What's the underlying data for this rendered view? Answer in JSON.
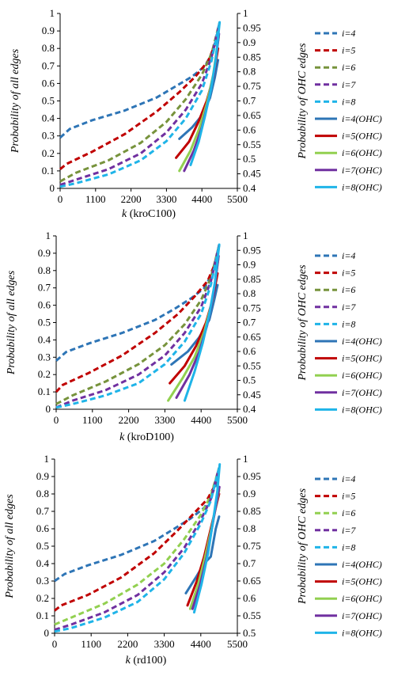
{
  "chart_data": [
    {
      "type": "line",
      "title": "",
      "xlabel_var": "k",
      "xlabel_name": "(kroC100)",
      "ylabel": "Probability of all edges",
      "y2label": "Probability of OHC edges",
      "xlim": [
        0,
        5500
      ],
      "xticks": [
        "0",
        "1100",
        "2200",
        "3300",
        "4400",
        "5500"
      ],
      "ylim": [
        0,
        1
      ],
      "yticks": [
        "0",
        "0.1",
        "0.2",
        "0.3",
        "0.4",
        "0.5",
        "0.6",
        "0.7",
        "0.8",
        "0.9",
        "1"
      ],
      "y2lim": [
        0.4,
        1
      ],
      "y2ticks": [
        "0.4",
        "0.45",
        "0.5",
        "0.55",
        "0.6",
        "0.65",
        "0.7",
        "0.75",
        "0.8",
        "0.85",
        "0.9",
        "0.95",
        "1"
      ],
      "grid": false,
      "legend_position": "right",
      "series": [
        {
          "name": "i=4",
          "axis": "left",
          "style": "dashed",
          "color": "#2E75B6",
          "x": [
            0,
            300,
            1000,
            2000,
            3000,
            3600,
            4100,
            4500,
            4700,
            4850,
            4950
          ],
          "y": [
            0.29,
            0.34,
            0.39,
            0.445,
            0.52,
            0.585,
            0.64,
            0.7,
            0.77,
            0.85,
            0.95
          ]
        },
        {
          "name": "i=5",
          "axis": "left",
          "style": "dashed",
          "color": "#C00000",
          "x": [
            0,
            200,
            1000,
            2000,
            3000,
            3700,
            4200,
            4600,
            4800,
            4950
          ],
          "y": [
            0.11,
            0.14,
            0.21,
            0.31,
            0.44,
            0.55,
            0.64,
            0.73,
            0.82,
            0.95
          ]
        },
        {
          "name": "i=6",
          "axis": "left",
          "style": "dashed",
          "color": "#77933C",
          "x": [
            0,
            500,
            1500,
            2500,
            3300,
            3900,
            4400,
            4700,
            4950
          ],
          "y": [
            0.04,
            0.09,
            0.16,
            0.26,
            0.38,
            0.51,
            0.65,
            0.77,
            0.95
          ]
        },
        {
          "name": "i=7",
          "axis": "left",
          "style": "dashed",
          "color": "#7030A0",
          "x": [
            0,
            500,
            1500,
            2500,
            3300,
            3900,
            4400,
            4700,
            4950
          ],
          "y": [
            0.02,
            0.05,
            0.11,
            0.2,
            0.32,
            0.45,
            0.6,
            0.75,
            0.95
          ]
        },
        {
          "name": "i=8",
          "axis": "left",
          "style": "dashed",
          "color": "#1FB4E8",
          "x": [
            0,
            500,
            1500,
            2500,
            3300,
            3900,
            4400,
            4700,
            4950
          ],
          "y": [
            0.01,
            0.03,
            0.08,
            0.16,
            0.27,
            0.4,
            0.56,
            0.73,
            0.95
          ]
        },
        {
          "name": "i=4(OHC)",
          "axis": "right",
          "style": "solid",
          "color": "#2E75B6",
          "x": [
            3700,
            4100,
            4400,
            4650,
            4800,
            4900
          ],
          "y": [
            0.57,
            0.61,
            0.65,
            0.71,
            0.78,
            0.84
          ]
        },
        {
          "name": "i=5(OHC)",
          "axis": "right",
          "style": "solid",
          "color": "#C00000",
          "x": [
            3600,
            4000,
            4300,
            4550,
            4750,
            4900
          ],
          "y": [
            0.505,
            0.56,
            0.63,
            0.7,
            0.78,
            0.88
          ]
        },
        {
          "name": "i=6(OHC)",
          "axis": "right",
          "style": "solid",
          "color": "#92D050",
          "x": [
            3700,
            4050,
            4300,
            4550,
            4750,
            4920
          ],
          "y": [
            0.46,
            0.53,
            0.6,
            0.69,
            0.79,
            0.92
          ]
        },
        {
          "name": "i=7(OHC)",
          "axis": "right",
          "style": "solid",
          "color": "#7030A0",
          "x": [
            3850,
            4150,
            4400,
            4600,
            4780,
            4930
          ],
          "y": [
            0.46,
            0.53,
            0.61,
            0.7,
            0.8,
            0.93
          ]
        },
        {
          "name": "i=8(OHC)",
          "axis": "right",
          "style": "solid",
          "color": "#1FB4E8",
          "x": [
            4050,
            4300,
            4500,
            4680,
            4830,
            4950
          ],
          "y": [
            0.48,
            0.56,
            0.65,
            0.74,
            0.84,
            0.97
          ]
        }
      ]
    },
    {
      "type": "line",
      "title": "",
      "xlabel_var": "k",
      "xlabel_name": "(kroD100)",
      "ylabel": "Probability of all edges",
      "y2label": "Probability of OHC edges",
      "xlim": [
        0,
        5500
      ],
      "xticks": [
        "0",
        "1100",
        "2200",
        "3300",
        "4400",
        "5500"
      ],
      "ylim": [
        0,
        1
      ],
      "yticks": [
        "0",
        "0.1",
        "0.2",
        "0.3",
        "0.4",
        "0.5",
        "0.6",
        "0.7",
        "0.8",
        "0.9",
        "1"
      ],
      "y2lim": [
        0.4,
        1
      ],
      "y2ticks": [
        "0.4",
        "0.45",
        "0.5",
        "0.55",
        "0.6",
        "0.65",
        "0.7",
        "0.75",
        "0.8",
        "0.85",
        "0.9",
        "0.95",
        "1"
      ],
      "grid": false,
      "legend_position": "right",
      "series": [
        {
          "name": "i=4",
          "axis": "left",
          "style": "dashed",
          "color": "#2E75B6",
          "x": [
            0,
            300,
            1000,
            2000,
            3000,
            3600,
            4100,
            4500,
            4700,
            4850,
            4950
          ],
          "y": [
            0.28,
            0.33,
            0.38,
            0.44,
            0.515,
            0.58,
            0.64,
            0.7,
            0.77,
            0.85,
            0.95
          ]
        },
        {
          "name": "i=5",
          "axis": "left",
          "style": "dashed",
          "color": "#C00000",
          "x": [
            0,
            200,
            1000,
            2000,
            3000,
            3700,
            4200,
            4600,
            4800,
            4950
          ],
          "y": [
            0.1,
            0.14,
            0.21,
            0.31,
            0.44,
            0.55,
            0.65,
            0.74,
            0.83,
            0.95
          ]
        },
        {
          "name": "i=6",
          "axis": "left",
          "style": "dashed",
          "color": "#77933C",
          "x": [
            0,
            500,
            1500,
            2500,
            3300,
            3900,
            4400,
            4700,
            4950
          ],
          "y": [
            0.03,
            0.08,
            0.16,
            0.26,
            0.37,
            0.49,
            0.63,
            0.76,
            0.95
          ]
        },
        {
          "name": "i=7",
          "axis": "left",
          "style": "dashed",
          "color": "#7030A0",
          "x": [
            0,
            500,
            1500,
            2500,
            3300,
            3900,
            4400,
            4700,
            4950
          ],
          "y": [
            0.01,
            0.05,
            0.11,
            0.2,
            0.31,
            0.44,
            0.59,
            0.74,
            0.95
          ]
        },
        {
          "name": "i=8",
          "axis": "left",
          "style": "dashed",
          "color": "#1FB4E8",
          "x": [
            0,
            500,
            1500,
            2500,
            3300,
            3900,
            4400,
            4700,
            4950
          ],
          "y": [
            0.01,
            0.03,
            0.08,
            0.15,
            0.26,
            0.39,
            0.55,
            0.72,
            0.95
          ]
        },
        {
          "name": "i=4(OHC)",
          "axis": "right",
          "style": "solid",
          "color": "#2E75B6",
          "x": [
            3500,
            4000,
            4350,
            4650,
            4800,
            4900
          ],
          "y": [
            0.555,
            0.6,
            0.65,
            0.71,
            0.78,
            0.83
          ]
        },
        {
          "name": "i=5(OHC)",
          "axis": "right",
          "style": "solid",
          "color": "#C00000",
          "x": [
            3450,
            3900,
            4250,
            4550,
            4750,
            4900
          ],
          "y": [
            0.49,
            0.55,
            0.62,
            0.7,
            0.78,
            0.87
          ]
        },
        {
          "name": "i=6(OHC)",
          "axis": "right",
          "style": "solid",
          "color": "#92D050",
          "x": [
            3400,
            3850,
            4200,
            4500,
            4750,
            4920
          ],
          "y": [
            0.43,
            0.51,
            0.58,
            0.67,
            0.78,
            0.92
          ]
        },
        {
          "name": "i=7(OHC)",
          "axis": "right",
          "style": "solid",
          "color": "#7030A0",
          "x": [
            3650,
            4050,
            4350,
            4580,
            4780,
            4930
          ],
          "y": [
            0.44,
            0.52,
            0.6,
            0.69,
            0.8,
            0.93
          ]
        },
        {
          "name": "i=8(OHC)",
          "axis": "right",
          "style": "solid",
          "color": "#1FB4E8",
          "x": [
            3900,
            4200,
            4450,
            4650,
            4820,
            4950
          ],
          "y": [
            0.43,
            0.53,
            0.63,
            0.73,
            0.84,
            0.97
          ]
        }
      ]
    },
    {
      "type": "line",
      "title": "",
      "xlabel_var": "k",
      "xlabel_name": "(rd100)",
      "ylabel": "Probability of all edges",
      "y2label": "Probability of OHC edges",
      "xlim": [
        0,
        5500
      ],
      "xticks": [
        "0",
        "1100",
        "2200",
        "3300",
        "4400",
        "5500"
      ],
      "ylim": [
        0,
        1
      ],
      "yticks": [
        "0",
        "0.1",
        "0.2",
        "0.3",
        "0.4",
        "0.5",
        "0.6",
        "0.7",
        "0.8",
        "0.9",
        "1"
      ],
      "y2lim": [
        0.5,
        1
      ],
      "y2ticks": [
        "0.5",
        "0.55",
        "0.6",
        "0.65",
        "0.7",
        "0.75",
        "0.8",
        "0.85",
        "0.9",
        "0.95",
        "1"
      ],
      "grid": false,
      "legend_position": "right",
      "series": [
        {
          "name": "i=4",
          "axis": "left",
          "style": "dashed",
          "color": "#2E75B6",
          "x": [
            0,
            300,
            1000,
            2000,
            3000,
            3600,
            4100,
            4500,
            4700,
            4850,
            4950
          ],
          "y": [
            0.3,
            0.34,
            0.39,
            0.45,
            0.53,
            0.6,
            0.66,
            0.72,
            0.78,
            0.85,
            0.95
          ]
        },
        {
          "name": "i=5",
          "axis": "left",
          "style": "dashed",
          "color": "#C00000",
          "x": [
            0,
            200,
            1000,
            2000,
            3000,
            3700,
            4200,
            4600,
            4800,
            4950
          ],
          "y": [
            0.13,
            0.16,
            0.22,
            0.32,
            0.46,
            0.59,
            0.69,
            0.77,
            0.84,
            0.95
          ]
        },
        {
          "name": "i=6",
          "axis": "left",
          "style": "dashed",
          "color": "#92D050",
          "x": [
            0,
            500,
            1500,
            2500,
            3300,
            3900,
            4400,
            4700,
            4950
          ],
          "y": [
            0.05,
            0.09,
            0.17,
            0.28,
            0.4,
            0.54,
            0.68,
            0.79,
            0.95
          ]
        },
        {
          "name": "i=7",
          "axis": "left",
          "style": "dashed",
          "color": "#7030A0",
          "x": [
            0,
            500,
            1500,
            2500,
            3300,
            3900,
            4400,
            4700,
            4950
          ],
          "y": [
            0.02,
            0.05,
            0.12,
            0.22,
            0.35,
            0.49,
            0.65,
            0.77,
            0.95
          ]
        },
        {
          "name": "i=8",
          "axis": "left",
          "style": "dashed",
          "color": "#1FB4E8",
          "x": [
            0,
            500,
            1500,
            2500,
            3300,
            3900,
            4400,
            4700,
            4950
          ],
          "y": [
            0.01,
            0.03,
            0.09,
            0.18,
            0.31,
            0.46,
            0.63,
            0.76,
            0.95
          ]
        },
        {
          "name": "i=4(OHC)",
          "axis": "right",
          "style": "solid",
          "color": "#2E75B6",
          "x": [
            3950,
            4250,
            4500,
            4700,
            4850,
            4950
          ],
          "y": [
            0.615,
            0.66,
            0.7,
            0.72,
            0.8,
            0.835
          ]
        },
        {
          "name": "i=5(OHC)",
          "axis": "right",
          "style": "solid",
          "color": "#C00000",
          "x": [
            4000,
            4280,
            4500,
            4700,
            4850,
            4950
          ],
          "y": [
            0.58,
            0.65,
            0.72,
            0.8,
            0.86,
            0.9
          ]
        },
        {
          "name": "i=6(OHC)",
          "axis": "right",
          "style": "solid",
          "color": "#92D050",
          "x": [
            4080,
            4320,
            4530,
            4720,
            4870,
            4950
          ],
          "y": [
            0.57,
            0.64,
            0.72,
            0.8,
            0.87,
            0.91
          ]
        },
        {
          "name": "i=7(OHC)",
          "axis": "right",
          "style": "solid",
          "color": "#7030A0",
          "x": [
            4150,
            4380,
            4580,
            4750,
            4880,
            4960
          ],
          "y": [
            0.57,
            0.64,
            0.72,
            0.81,
            0.88,
            0.92
          ]
        },
        {
          "name": "i=8(OHC)",
          "axis": "right",
          "style": "solid",
          "color": "#1FB4E8",
          "x": [
            4200,
            4420,
            4620,
            4780,
            4900,
            4970
          ],
          "y": [
            0.56,
            0.64,
            0.73,
            0.83,
            0.91,
            0.985
          ]
        }
      ]
    }
  ]
}
